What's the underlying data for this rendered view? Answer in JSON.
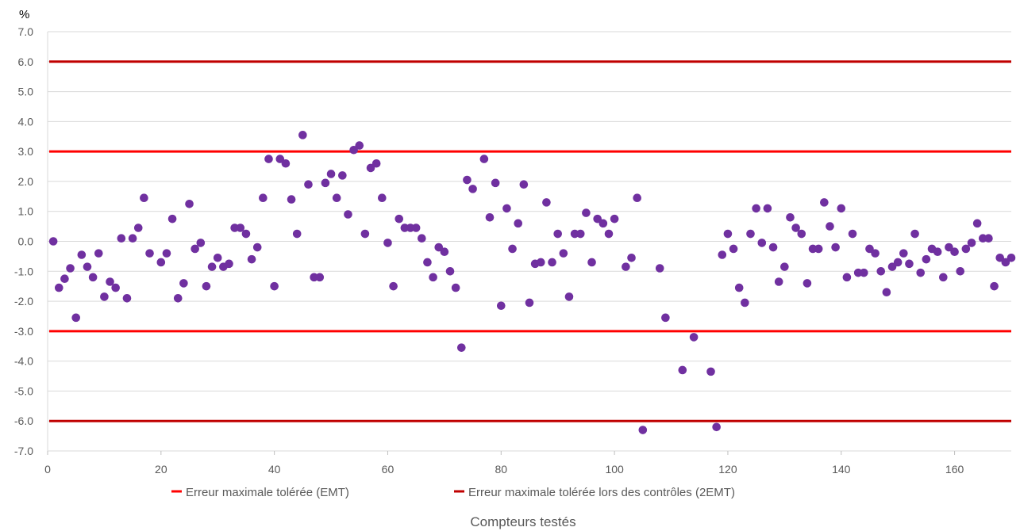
{
  "chart_data": {
    "type": "scatter",
    "ylabel": "%",
    "xlabel": "Compteurs testés",
    "xlim": [
      0,
      170
    ],
    "ylim": [
      -7,
      7
    ],
    "x_ticks": [
      0,
      20,
      40,
      60,
      80,
      100,
      120,
      140,
      160
    ],
    "y_ticks": [
      7,
      6,
      5,
      4,
      3,
      2,
      1,
      0,
      -1,
      -2,
      -3,
      -4,
      -5,
      -6,
      -7
    ],
    "y_tick_labels": [
      "7.0",
      "6.0",
      "5.0",
      "4.0",
      "3.0",
      "2.0",
      "1.0",
      "0.0",
      "-1.0",
      "-2.0",
      "-3.0",
      "-4.0",
      "-5.0",
      "-6.0",
      "-7.0"
    ],
    "grid": true,
    "point_color": "#7030A0",
    "reference_lines": [
      {
        "name": "Erreur maximale tolérée (EMT)",
        "values": [
          3,
          -3
        ],
        "color": "#FF0000"
      },
      {
        "name": "Erreur maximale tolérée lors des contrôles (2EMT)",
        "values": [
          6,
          -6
        ],
        "color": "#C00000"
      }
    ],
    "legend_position": "bottom",
    "points": [
      [
        1,
        0.0
      ],
      [
        2,
        -1.55
      ],
      [
        3,
        -1.25
      ],
      [
        4,
        -0.9
      ],
      [
        5,
        -2.55
      ],
      [
        6,
        -0.45
      ],
      [
        7,
        -0.85
      ],
      [
        8,
        -1.2
      ],
      [
        9,
        -0.4
      ],
      [
        10,
        -1.85
      ],
      [
        11,
        -1.35
      ],
      [
        12,
        -1.55
      ],
      [
        13,
        0.1
      ],
      [
        14,
        -1.9
      ],
      [
        15,
        0.1
      ],
      [
        16,
        0.45
      ],
      [
        17,
        1.45
      ],
      [
        18,
        -0.4
      ],
      [
        20,
        -0.7
      ],
      [
        21,
        -0.4
      ],
      [
        22,
        0.75
      ],
      [
        23,
        -1.9
      ],
      [
        24,
        -1.4
      ],
      [
        25,
        1.25
      ],
      [
        26,
        -0.25
      ],
      [
        27,
        -0.05
      ],
      [
        28,
        -1.5
      ],
      [
        29,
        -0.85
      ],
      [
        30,
        -0.55
      ],
      [
        31,
        -0.85
      ],
      [
        32,
        -0.75
      ],
      [
        33,
        0.45
      ],
      [
        34,
        0.45
      ],
      [
        35,
        0.25
      ],
      [
        36,
        -0.6
      ],
      [
        37,
        -0.2
      ],
      [
        38,
        1.45
      ],
      [
        39,
        2.75
      ],
      [
        40,
        -1.5
      ],
      [
        41,
        2.75
      ],
      [
        42,
        2.6
      ],
      [
        43,
        1.4
      ],
      [
        44,
        0.25
      ],
      [
        45,
        3.55
      ],
      [
        46,
        1.9
      ],
      [
        47,
        -1.2
      ],
      [
        48,
        -1.2
      ],
      [
        49,
        1.95
      ],
      [
        50,
        2.25
      ],
      [
        51,
        1.45
      ],
      [
        52,
        2.2
      ],
      [
        53,
        0.9
      ],
      [
        54,
        3.05
      ],
      [
        55,
        3.2
      ],
      [
        56,
        0.25
      ],
      [
        57,
        2.45
      ],
      [
        58,
        2.6
      ],
      [
        59,
        1.45
      ],
      [
        60,
        -0.05
      ],
      [
        61,
        -1.5
      ],
      [
        62,
        0.75
      ],
      [
        63,
        0.45
      ],
      [
        64,
        0.45
      ],
      [
        65,
        0.45
      ],
      [
        66,
        0.1
      ],
      [
        67,
        -0.7
      ],
      [
        68,
        -1.2
      ],
      [
        69,
        -0.2
      ],
      [
        70,
        -0.35
      ],
      [
        71,
        -1.0
      ],
      [
        72,
        -1.55
      ],
      [
        73,
        -3.55
      ],
      [
        74,
        2.05
      ],
      [
        75,
        1.75
      ],
      [
        77,
        2.75
      ],
      [
        78,
        0.8
      ],
      [
        79,
        1.95
      ],
      [
        80,
        -2.15
      ],
      [
        81,
        1.1
      ],
      [
        82,
        -0.25
      ],
      [
        83,
        0.6
      ],
      [
        84,
        1.9
      ],
      [
        85,
        -2.05
      ],
      [
        86,
        -0.75
      ],
      [
        87,
        -0.7
      ],
      [
        88,
        1.3
      ],
      [
        89,
        -0.7
      ],
      [
        90,
        0.25
      ],
      [
        91,
        -0.4
      ],
      [
        92,
        -1.85
      ],
      [
        93,
        0.25
      ],
      [
        94,
        0.25
      ],
      [
        95,
        0.95
      ],
      [
        96,
        -0.7
      ],
      [
        97,
        0.75
      ],
      [
        98,
        0.6
      ],
      [
        99,
        0.25
      ],
      [
        100,
        0.75
      ],
      [
        102,
        -0.85
      ],
      [
        103,
        -0.55
      ],
      [
        104,
        1.45
      ],
      [
        105,
        -6.3
      ],
      [
        108,
        -0.9
      ],
      [
        109,
        -2.55
      ],
      [
        112,
        -4.3
      ],
      [
        114,
        -3.2
      ],
      [
        117,
        -4.35
      ],
      [
        118,
        -6.2
      ],
      [
        119,
        -0.45
      ],
      [
        120,
        0.25
      ],
      [
        121,
        -0.25
      ],
      [
        122,
        -1.55
      ],
      [
        123,
        -2.05
      ],
      [
        124,
        0.25
      ],
      [
        125,
        1.1
      ],
      [
        126,
        -0.05
      ],
      [
        127,
        1.1
      ],
      [
        128,
        -0.2
      ],
      [
        129,
        -1.35
      ],
      [
        130,
        -0.85
      ],
      [
        131,
        0.8
      ],
      [
        132,
        0.45
      ],
      [
        133,
        0.25
      ],
      [
        134,
        -1.4
      ],
      [
        135,
        -0.25
      ],
      [
        136,
        -0.25
      ],
      [
        137,
        1.3
      ],
      [
        138,
        0.5
      ],
      [
        139,
        -0.2
      ],
      [
        140,
        1.1
      ],
      [
        141,
        -1.2
      ],
      [
        142,
        0.25
      ],
      [
        143,
        -1.05
      ],
      [
        144,
        -1.05
      ],
      [
        145,
        -0.25
      ],
      [
        146,
        -0.4
      ],
      [
        147,
        -1.0
      ],
      [
        148,
        -1.7
      ],
      [
        149,
        -0.85
      ],
      [
        150,
        -0.7
      ],
      [
        151,
        -0.4
      ],
      [
        152,
        -0.75
      ],
      [
        153,
        0.25
      ],
      [
        154,
        -1.05
      ],
      [
        155,
        -0.6
      ],
      [
        156,
        -0.25
      ],
      [
        157,
        -0.35
      ],
      [
        158,
        -1.2
      ],
      [
        159,
        -0.2
      ],
      [
        160,
        -0.35
      ],
      [
        161,
        -1.0
      ],
      [
        162,
        -0.25
      ],
      [
        163,
        -0.05
      ],
      [
        164,
        0.6
      ],
      [
        165,
        0.1
      ],
      [
        166,
        0.1
      ],
      [
        167,
        -1.5
      ],
      [
        168,
        -0.55
      ],
      [
        169,
        -0.7
      ],
      [
        170,
        -0.55
      ]
    ]
  }
}
